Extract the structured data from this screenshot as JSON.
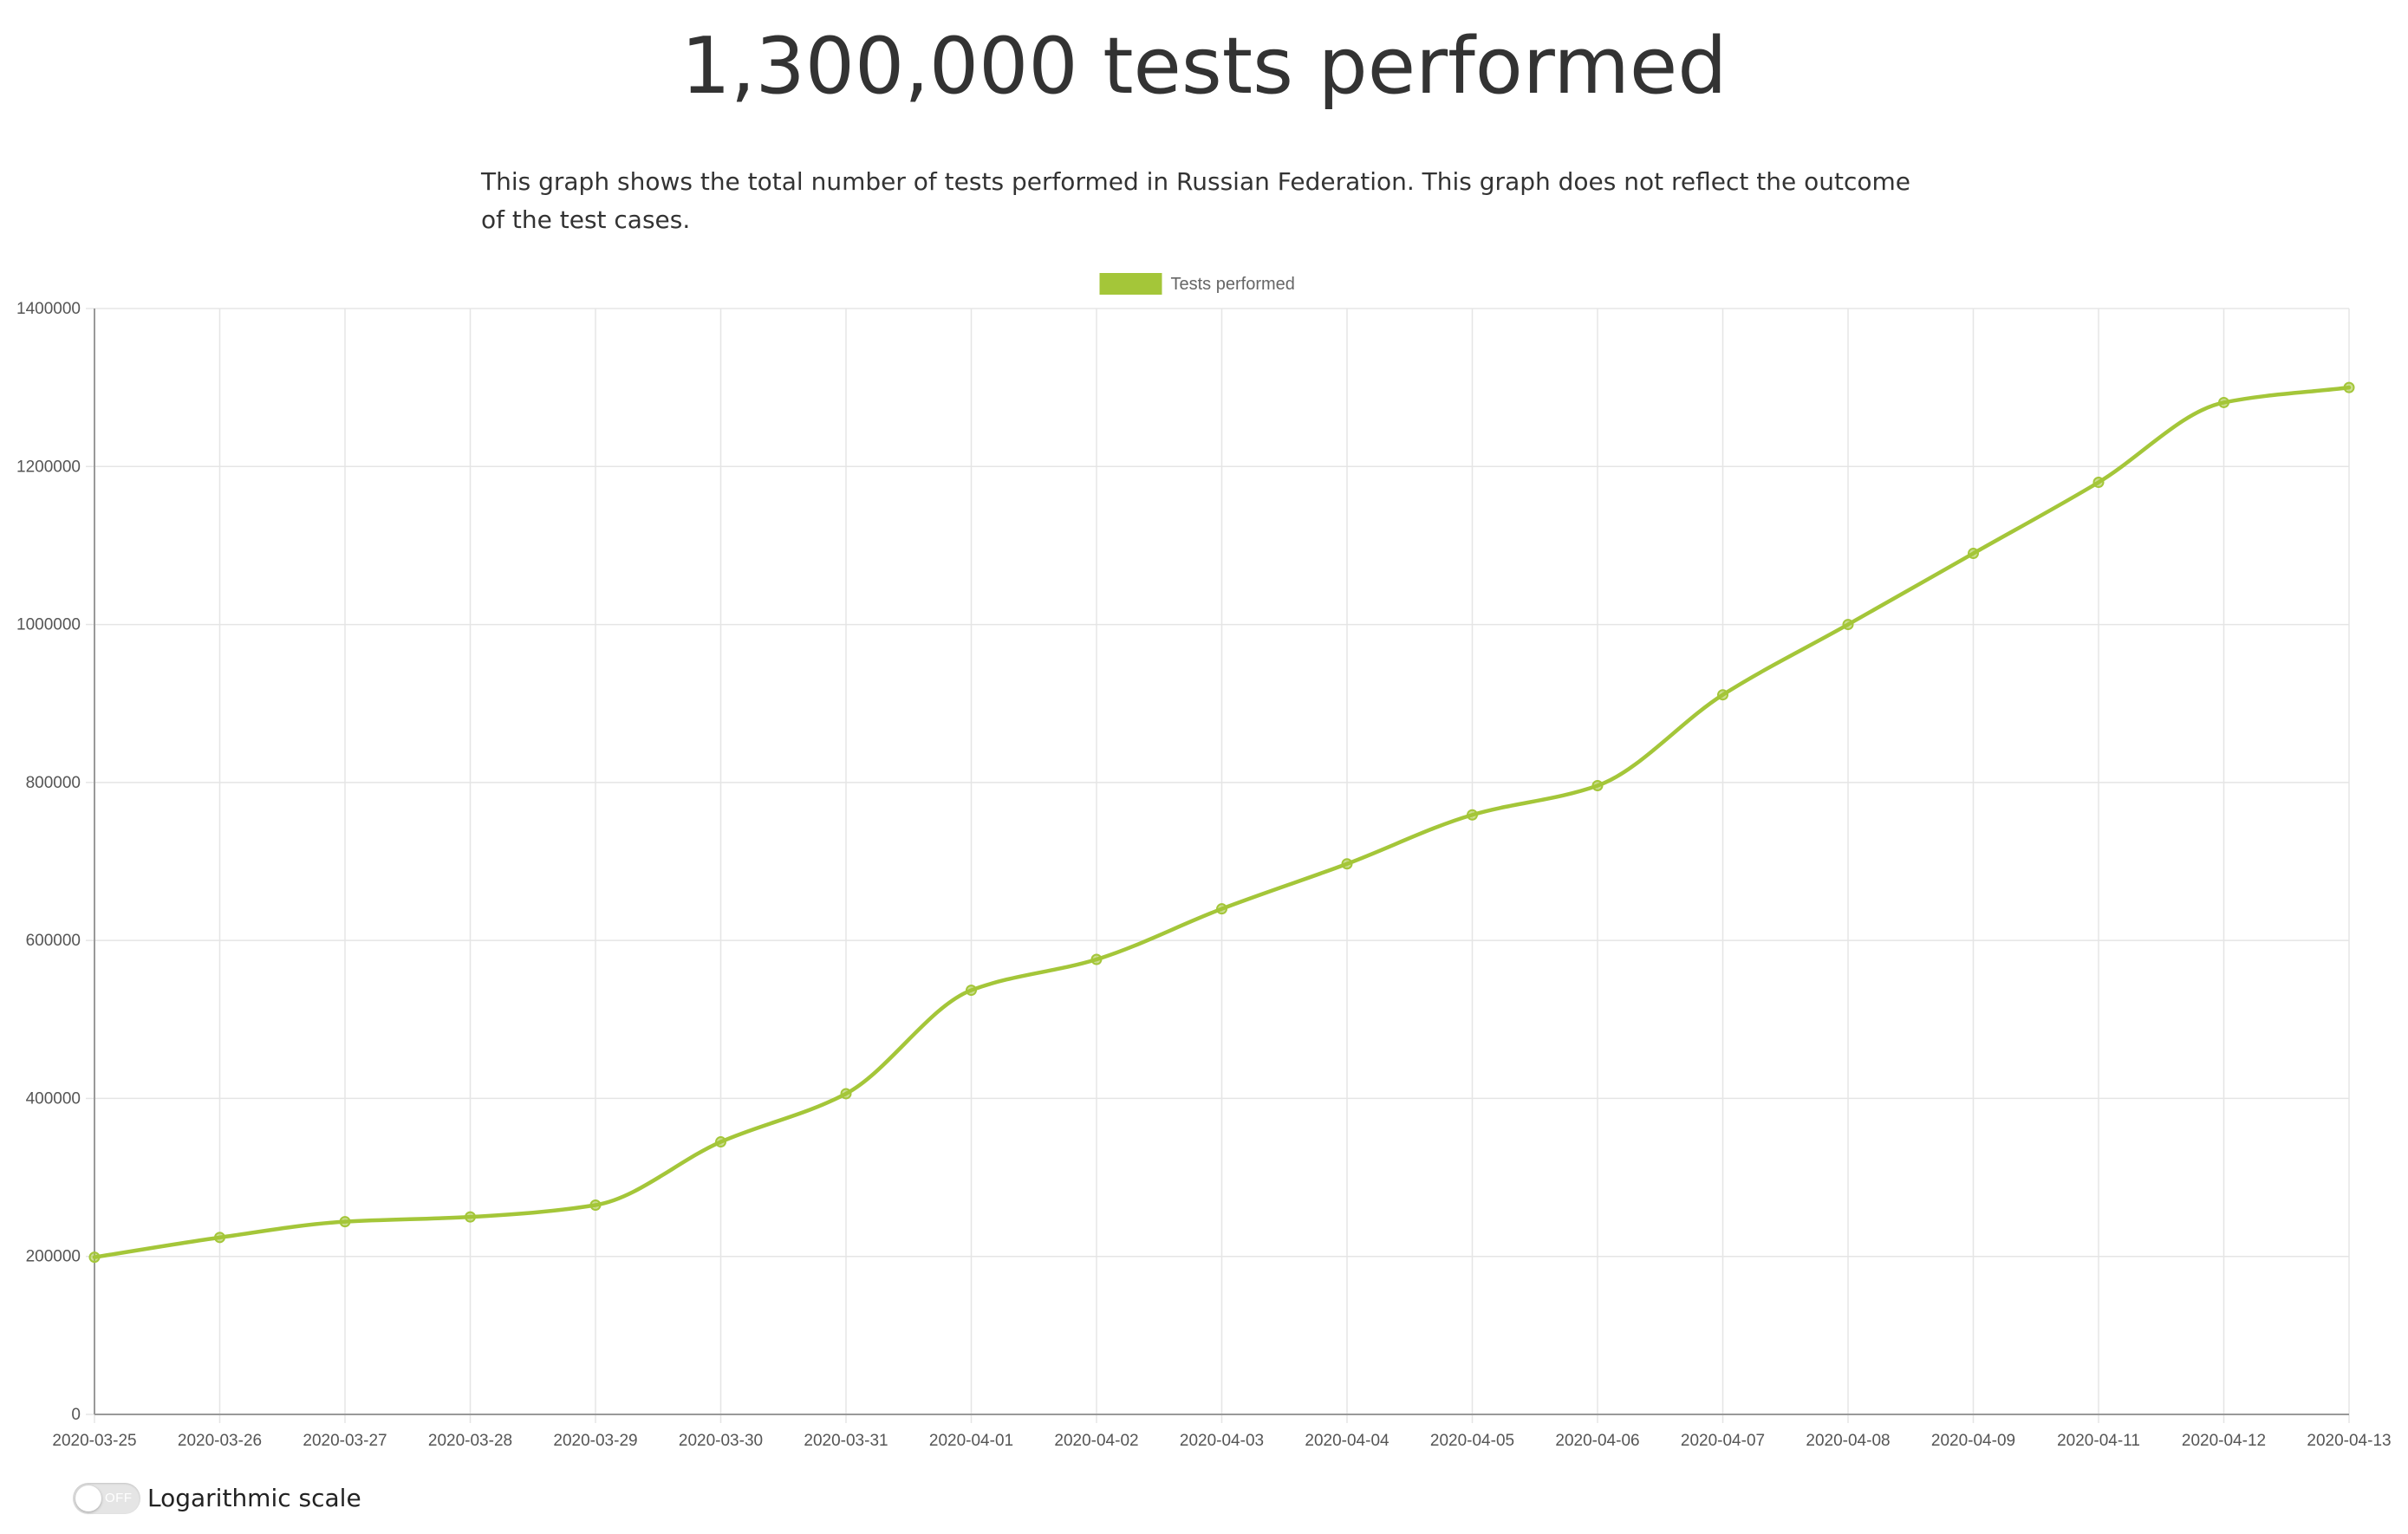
{
  "header": {
    "title": "1,300,000 tests performed",
    "description": "This graph shows the total number of tests performed in Russian Federation. This graph does not reflect the outcome of the test cases."
  },
  "controls": {
    "log_scale_label": "Logarithmic scale",
    "log_scale_state": "OFF"
  },
  "colors": {
    "series": "#a4c639",
    "grid": "#e5e5e5",
    "axis": "#999999"
  },
  "chart_data": {
    "type": "line",
    "title": "",
    "xlabel": "",
    "ylabel": "",
    "ylim": [
      0,
      1400000
    ],
    "y_ticks": [
      0,
      200000,
      400000,
      600000,
      800000,
      1000000,
      1200000,
      1400000
    ],
    "grid": true,
    "legend_position": "top-center",
    "log_scale": false,
    "categories": [
      "2020-03-25",
      "2020-03-26",
      "2020-03-27",
      "2020-03-28",
      "2020-03-29",
      "2020-03-30",
      "2020-03-31",
      "2020-04-01",
      "2020-04-02",
      "2020-04-03",
      "2020-04-04",
      "2020-04-05",
      "2020-04-06",
      "2020-04-07",
      "2020-04-08",
      "2020-04-09",
      "2020-04-11",
      "2020-04-12",
      "2020-04-13"
    ],
    "series": [
      {
        "name": "Tests performed",
        "values": [
          199000,
          224000,
          244000,
          250000,
          265000,
          345000,
          406000,
          537000,
          576000,
          640000,
          697000,
          759000,
          796000,
          911000,
          1000000,
          1090000,
          1180000,
          1281000,
          1300000
        ]
      }
    ]
  }
}
